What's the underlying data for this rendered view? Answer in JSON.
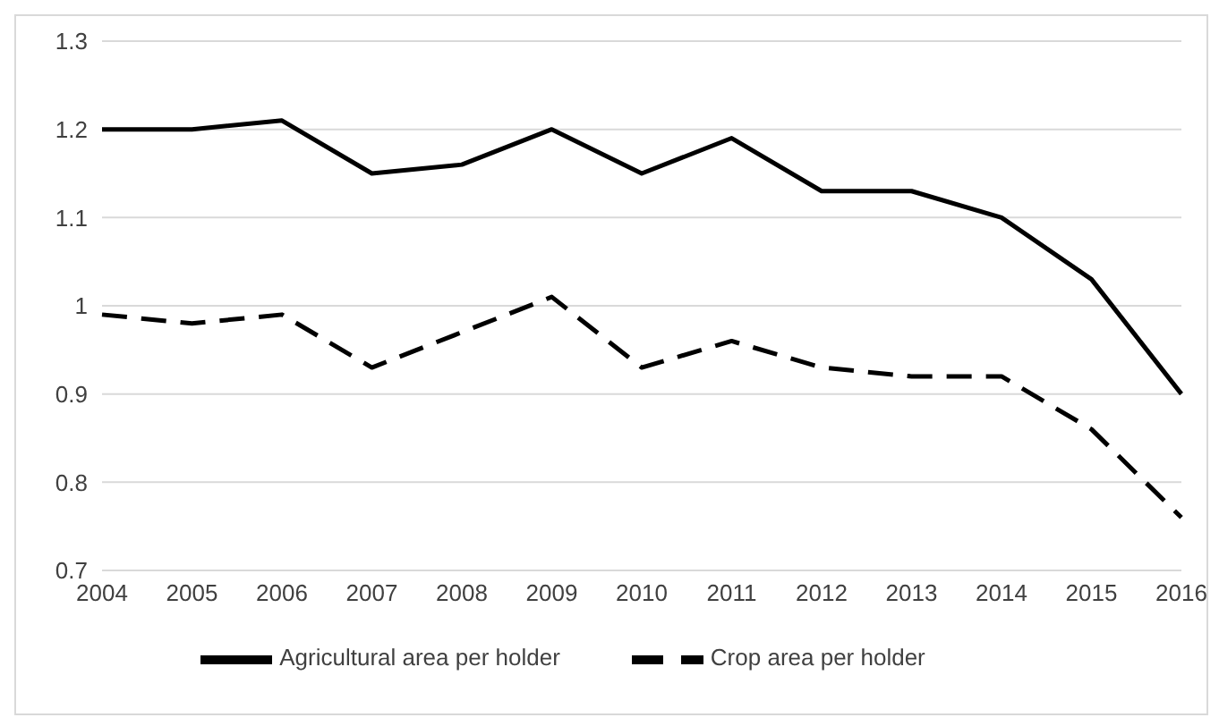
{
  "chart_data": {
    "type": "line",
    "categories": [
      "2004",
      "2005",
      "2006",
      "2007",
      "2008",
      "2009",
      "2010",
      "2011",
      "2012",
      "2013",
      "2014",
      "2015",
      "2016"
    ],
    "series": [
      {
        "name": "Crop area per holder",
        "color": "#000000",
        "line_style": "dashed",
        "values": [
          0.99,
          0.98,
          0.99,
          0.93,
          0.97,
          1.01,
          0.93,
          0.96,
          0.93,
          0.92,
          0.92,
          0.86,
          0.76
        ]
      },
      {
        "name": "Agricultural area per holder",
        "color": "#000000",
        "line_style": "solid",
        "values": [
          1.2,
          1.2,
          1.21,
          1.15,
          1.16,
          1.2,
          1.15,
          1.19,
          1.13,
          1.13,
          1.1,
          1.03,
          0.9
        ]
      }
    ],
    "ylim": [
      0.7,
      1.3
    ],
    "yticks": [
      0.7,
      0.8,
      0.9,
      1,
      1.1,
      1.2,
      1.3
    ],
    "grid": "y",
    "legend": "bottom",
    "marker": "none"
  }
}
